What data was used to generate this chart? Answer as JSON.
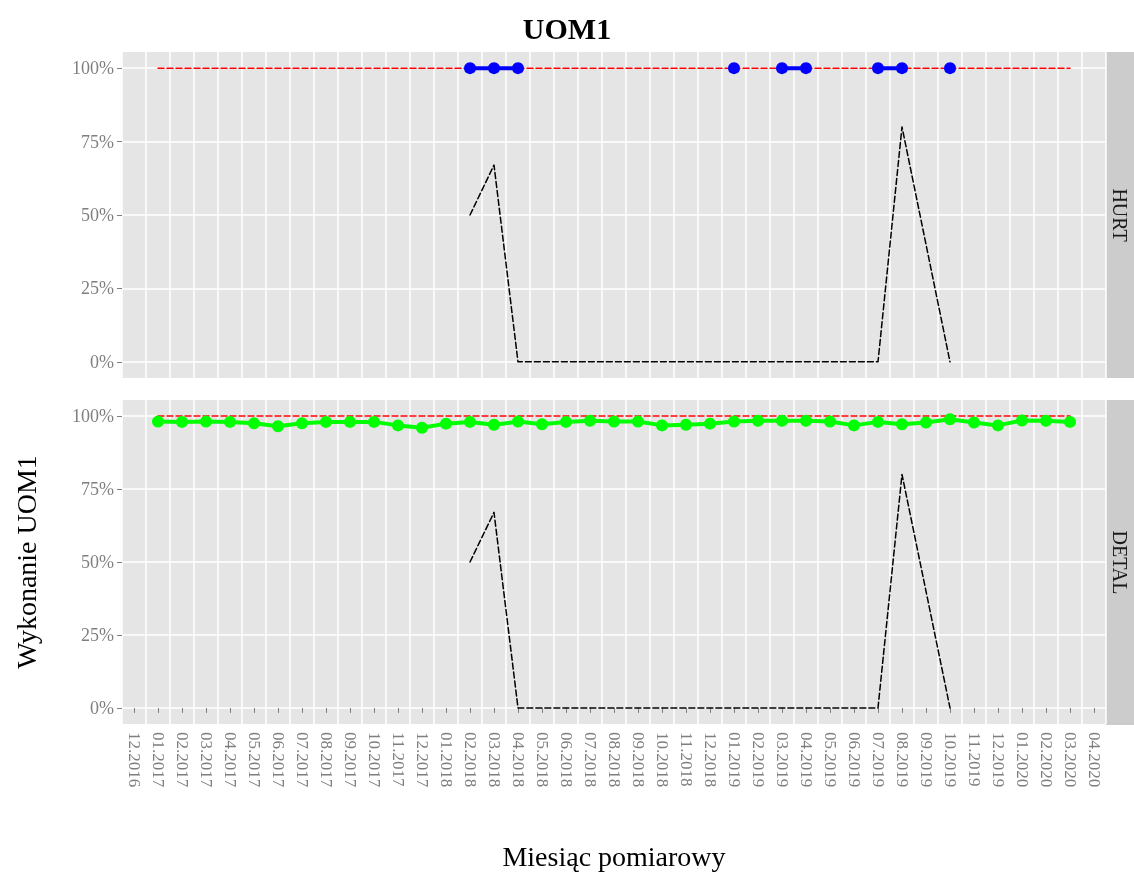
{
  "chart_data": [
    {
      "type": "line",
      "title": "UOM1",
      "subtitle": "HURT",
      "tick_labels": "y",
      "grid": true,
      "categories": [
        "12.2016",
        "01.2017",
        "02.2017",
        "03.2017",
        "04.2017",
        "05.2017",
        "06.2017",
        "07.2017",
        "08.2017",
        "09.2017",
        "10.2017",
        "11.2017",
        "12.2017",
        "01.2018",
        "02.2018",
        "03.2018",
        "04.2018",
        "05.2018",
        "06.2018",
        "07.2018",
        "08.2018",
        "09.2018",
        "10.2018",
        "11.2018",
        "12.2018",
        "01.2019",
        "02.2019",
        "03.2019",
        "04.2019",
        "05.2019",
        "06.2019",
        "07.2019",
        "08.2019",
        "09.2019",
        "10.2019",
        "11.2019",
        "12.2019",
        "01.2020",
        "02.2020",
        "03.2020",
        "04.2020"
      ],
      "ylim": [
        -5.5,
        105.5
      ],
      "yticks": [
        {
          "value": 0,
          "label": "0%"
        },
        {
          "value": 25,
          "label": "25%"
        },
        {
          "value": 50,
          "label": "50%"
        },
        {
          "value": 75,
          "label": "75%"
        },
        {
          "value": 100,
          "label": "100%"
        }
      ],
      "series": [
        {
          "color": "#ff0000",
          "marker": "none",
          "line_style": "dashed",
          "values": [
            null,
            100,
            100,
            100,
            100,
            100,
            100,
            100,
            100,
            100,
            100,
            100,
            100,
            100,
            100,
            100,
            100,
            100,
            100,
            100,
            100,
            100,
            100,
            100,
            100,
            100,
            100,
            100,
            100,
            100,
            100,
            100,
            100,
            100,
            100,
            100,
            100,
            100,
            100,
            100,
            null
          ]
        },
        {
          "color": "#000000",
          "marker": "none",
          "line_style": "dashed",
          "values": [
            null,
            null,
            null,
            null,
            null,
            null,
            null,
            null,
            null,
            null,
            null,
            null,
            null,
            null,
            50,
            67,
            0,
            0,
            0,
            0,
            0,
            0,
            0,
            0,
            0,
            0,
            0,
            0,
            0,
            0,
            0,
            0,
            80,
            40,
            0,
            null,
            null,
            null,
            null,
            null,
            null
          ]
        },
        {
          "color": "#0000ff",
          "marker": "circle",
          "line_style": "solid",
          "values": [
            null,
            null,
            null,
            null,
            null,
            null,
            null,
            null,
            null,
            null,
            null,
            null,
            null,
            null,
            100,
            100,
            100,
            null,
            null,
            null,
            null,
            null,
            null,
            null,
            null,
            100,
            null,
            100,
            100,
            null,
            null,
            100,
            100,
            null,
            100,
            null,
            null,
            null,
            null,
            null,
            null
          ]
        }
      ]
    },
    {
      "type": "line",
      "subtitle": "DETAL",
      "xlabel": "Miesiąc pomiarowy",
      "ylabel": "Wykonanie UOM1",
      "grid": true,
      "categories": [
        "12.2016",
        "01.2017",
        "02.2017",
        "03.2017",
        "04.2017",
        "05.2017",
        "06.2017",
        "07.2017",
        "08.2017",
        "09.2017",
        "10.2017",
        "11.2017",
        "12.2017",
        "01.2018",
        "02.2018",
        "03.2018",
        "04.2018",
        "05.2018",
        "06.2018",
        "07.2018",
        "08.2018",
        "09.2018",
        "10.2018",
        "11.2018",
        "12.2018",
        "01.2019",
        "02.2019",
        "03.2019",
        "04.2019",
        "05.2019",
        "06.2019",
        "07.2019",
        "08.2019",
        "09.2019",
        "10.2019",
        "11.2019",
        "12.2019",
        "01.2020",
        "02.2020",
        "03.2020",
        "04.2020"
      ],
      "ylim": [
        -5.5,
        105.5
      ],
      "yticks": [
        {
          "value": 0,
          "label": "0%"
        },
        {
          "value": 25,
          "label": "25%"
        },
        {
          "value": 50,
          "label": "50%"
        },
        {
          "value": 75,
          "label": "75%"
        },
        {
          "value": 100,
          "label": "100%"
        }
      ],
      "series": [
        {
          "color": "#ff0000",
          "marker": "none",
          "line_style": "dashed",
          "values": [
            null,
            100,
            100,
            100,
            100,
            100,
            100,
            100,
            100,
            100,
            100,
            100,
            100,
            100,
            100,
            100,
            100,
            100,
            100,
            100,
            100,
            100,
            100,
            100,
            100,
            100,
            100,
            100,
            100,
            100,
            100,
            100,
            100,
            100,
            100,
            100,
            100,
            100,
            100,
            100,
            null
          ]
        },
        {
          "color": "#000000",
          "marker": "none",
          "line_style": "dashed",
          "values": [
            null,
            null,
            null,
            null,
            null,
            null,
            null,
            null,
            null,
            null,
            null,
            null,
            null,
            null,
            50,
            67,
            0,
            0,
            0,
            0,
            0,
            0,
            0,
            0,
            0,
            0,
            0,
            0,
            0,
            0,
            0,
            0,
            80,
            40,
            0,
            null,
            null,
            null,
            null,
            null,
            null
          ]
        },
        {
          "color": "#00ff00",
          "marker": "circle",
          "line_style": "solid",
          "values": [
            null,
            98.1,
            98,
            98.1,
            98,
            97.5,
            96.5,
            97.5,
            98,
            98,
            98,
            96.8,
            96,
            97.4,
            98,
            97,
            98.1,
            97.2,
            98,
            98.4,
            98.1,
            98.1,
            96.8,
            97,
            97.4,
            98.1,
            98.4,
            98.4,
            98.4,
            98.1,
            96.8,
            98,
            97.2,
            97.8,
            98.9,
            97.8,
            96.8,
            98.5,
            98.4,
            98,
            null
          ]
        }
      ]
    }
  ]
}
